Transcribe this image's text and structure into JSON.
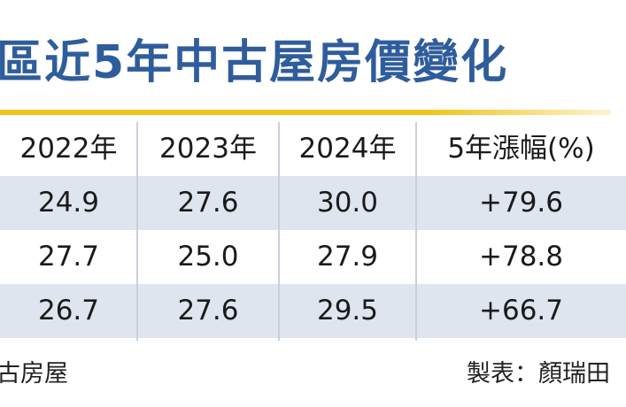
{
  "title": "區近5年中古屋房價變化",
  "table": {
    "header": [
      "2022年",
      "2023年",
      "2024年",
      "5年漲幅(%)"
    ],
    "rows": [
      [
        "24.9",
        "27.6",
        "30.0",
        "+79.6"
      ],
      [
        "27.7",
        "25.0",
        "27.9",
        "+78.8"
      ],
      [
        "26.7",
        "27.6",
        "29.5",
        "+66.7"
      ]
    ]
  },
  "footer": {
    "source": "古房屋",
    "credit": "製表：顏瑞田"
  }
}
